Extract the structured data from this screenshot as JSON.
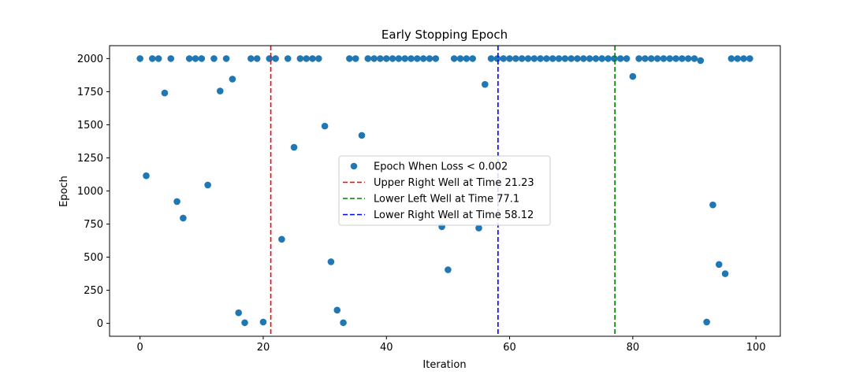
{
  "chart_data": {
    "type": "scatter",
    "title": "Early Stopping Epoch",
    "xlabel": "Iteration",
    "ylabel": "Epoch",
    "xlim": [
      -4.95,
      103.95
    ],
    "ylim": [
      -97.5,
      2097.5
    ],
    "xticks": [
      0,
      20,
      40,
      60,
      80,
      100
    ],
    "yticks": [
      0,
      250,
      500,
      750,
      1000,
      1250,
      1500,
      1750,
      2000
    ],
    "grid": false,
    "legend_position": "center",
    "series": [
      {
        "name": "Epoch When Loss < 0.002",
        "color": "#1f77b4",
        "points": [
          [
            0,
            2000
          ],
          [
            1,
            1115
          ],
          [
            2,
            2000
          ],
          [
            3,
            2000
          ],
          [
            4,
            1740
          ],
          [
            5,
            2000
          ],
          [
            6,
            920
          ],
          [
            7,
            795
          ],
          [
            8,
            2000
          ],
          [
            9,
            2000
          ],
          [
            10,
            2000
          ],
          [
            11,
            1045
          ],
          [
            12,
            2000
          ],
          [
            13,
            1755
          ],
          [
            14,
            2000
          ],
          [
            15,
            1845
          ],
          [
            16,
            80
          ],
          [
            17,
            5
          ],
          [
            18,
            2000
          ],
          [
            19,
            2000
          ],
          [
            20,
            10
          ],
          [
            21,
            2000
          ],
          [
            22,
            2000
          ],
          [
            23,
            635
          ],
          [
            24,
            2000
          ],
          [
            25,
            1330
          ],
          [
            26,
            2000
          ],
          [
            27,
            2000
          ],
          [
            28,
            2000
          ],
          [
            29,
            2000
          ],
          [
            30,
            1490
          ],
          [
            31,
            465
          ],
          [
            32,
            100
          ],
          [
            33,
            5
          ],
          [
            34,
            2000
          ],
          [
            35,
            2000
          ],
          [
            36,
            1420
          ],
          [
            37,
            2000
          ],
          [
            38,
            2000
          ],
          [
            39,
            2000
          ],
          [
            40,
            2000
          ],
          [
            41,
            2000
          ],
          [
            42,
            2000
          ],
          [
            43,
            2000
          ],
          [
            44,
            2000
          ],
          [
            45,
            2000
          ],
          [
            46,
            2000
          ],
          [
            47,
            2000
          ],
          [
            48,
            2000
          ],
          [
            49,
            730
          ],
          [
            50,
            405
          ],
          [
            51,
            2000
          ],
          [
            52,
            2000
          ],
          [
            53,
            2000
          ],
          [
            54,
            2000
          ],
          [
            55,
            720
          ],
          [
            56,
            1805
          ],
          [
            57,
            2000
          ],
          [
            58,
            2000
          ],
          [
            59,
            2000
          ],
          [
            60,
            2000
          ],
          [
            61,
            2000
          ],
          [
            62,
            2000
          ],
          [
            63,
            2000
          ],
          [
            64,
            2000
          ],
          [
            65,
            2000
          ],
          [
            66,
            2000
          ],
          [
            67,
            2000
          ],
          [
            68,
            2000
          ],
          [
            69,
            2000
          ],
          [
            70,
            2000
          ],
          [
            71,
            2000
          ],
          [
            72,
            2000
          ],
          [
            73,
            2000
          ],
          [
            74,
            2000
          ],
          [
            75,
            2000
          ],
          [
            76,
            2000
          ],
          [
            77,
            2000
          ],
          [
            78,
            2000
          ],
          [
            79,
            2000
          ],
          [
            80,
            1865
          ],
          [
            81,
            2000
          ],
          [
            82,
            2000
          ],
          [
            83,
            2000
          ],
          [
            84,
            2000
          ],
          [
            85,
            2000
          ],
          [
            86,
            2000
          ],
          [
            87,
            2000
          ],
          [
            88,
            2000
          ],
          [
            89,
            2000
          ],
          [
            90,
            2000
          ],
          [
            91,
            1985
          ],
          [
            92,
            10
          ],
          [
            93,
            895
          ],
          [
            94,
            445
          ],
          [
            95,
            375
          ],
          [
            96,
            2000
          ],
          [
            97,
            2000
          ],
          [
            98,
            2000
          ],
          [
            99,
            2000
          ]
        ]
      }
    ],
    "vlines": [
      {
        "name": "Upper Right Well at Time 21.23",
        "x": 21.23,
        "color": "#ff0000",
        "style": "dashed"
      },
      {
        "name": "Lower Left Well at Time 77.1",
        "x": 77.1,
        "color": "#008000",
        "style": "dashed"
      },
      {
        "name": "Lower Right Well at Time 58.12",
        "x": 58.12,
        "color": "#0000ff",
        "style": "dashed"
      }
    ]
  }
}
